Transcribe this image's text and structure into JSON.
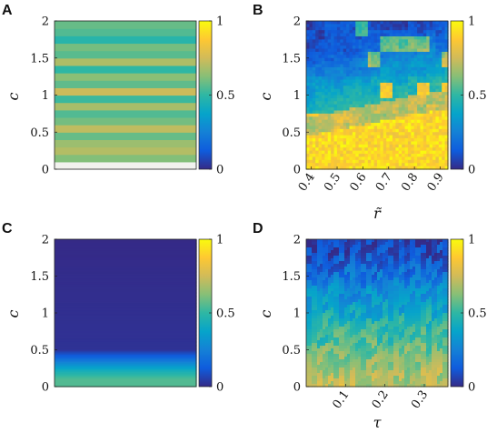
{
  "colors": {
    "colormap_parula": [
      "#352a87",
      "#0f5cdd",
      "#1481d6",
      "#06a4ca",
      "#2eb7a4",
      "#87bf77",
      "#d1bb59",
      "#fec832",
      "#f9fb0e"
    ]
  },
  "chart_data": [
    {
      "panel": "A",
      "type": "heatmap",
      "ylabel": "c",
      "xlabel": "",
      "yticks": [
        "0",
        "0.5",
        "1",
        "1.5",
        "2"
      ],
      "xticks": [],
      "ylim": [
        0,
        2
      ],
      "colorbar": {
        "ticks": [
          "0",
          "0.5",
          "1"
        ],
        "range": [
          0,
          1
        ]
      },
      "profile_description": "horizontal bands, value varies with c only",
      "row_values_bottom_to_top": [
        0.0,
        0.62,
        0.7,
        0.66,
        0.58,
        0.72,
        0.6,
        0.55,
        0.68,
        0.52,
        0.74,
        0.57,
        0.63,
        0.5,
        0.69,
        0.56,
        0.6,
        0.48,
        0.55,
        0.58
      ]
    },
    {
      "panel": "B",
      "type": "heatmap",
      "ylabel": "c",
      "xlabel": "r̃",
      "yticks": [
        "0",
        "0.5",
        "1",
        "1.5",
        "2"
      ],
      "xticks": [
        "0.4",
        "0.5",
        "0.6",
        "0.7",
        "0.8",
        "0.9"
      ],
      "xlim": [
        0.38,
        0.93
      ],
      "ylim": [
        0,
        2
      ],
      "colorbar": {
        "ticks": [
          "0",
          "0.5",
          "1"
        ],
        "range": [
          0,
          1
        ]
      },
      "boundary_c_at_x": [
        [
          0.38,
          0.6
        ],
        [
          0.5,
          0.68
        ],
        [
          0.6,
          0.75
        ],
        [
          0.7,
          0.82
        ],
        [
          0.8,
          0.9
        ],
        [
          0.93,
          0.95
        ]
      ]
    },
    {
      "panel": "C",
      "type": "heatmap",
      "ylabel": "c",
      "xlabel": "",
      "yticks": [
        "0",
        "0.5",
        "1",
        "1.5",
        "2"
      ],
      "xticks": [],
      "ylim": [
        0,
        2
      ],
      "colorbar": {
        "ticks": [
          "0",
          "0.5",
          "1"
        ],
        "range": [
          0,
          1
        ]
      },
      "profile_c_value": [
        [
          0.0,
          0.55
        ],
        [
          0.1,
          0.55
        ],
        [
          0.2,
          0.45
        ],
        [
          0.3,
          0.3
        ],
        [
          0.4,
          0.15
        ],
        [
          0.5,
          0.02
        ],
        [
          2.0,
          0.0
        ]
      ]
    },
    {
      "panel": "D",
      "type": "heatmap",
      "ylabel": "c",
      "xlabel": "τ",
      "yticks": [
        "0",
        "0.5",
        "1",
        "1.5",
        "2"
      ],
      "xticks": [
        "0.1",
        "0.2",
        "0.3"
      ],
      "xlim": [
        0.0,
        0.36
      ],
      "ylim": [
        0,
        2
      ],
      "colorbar": {
        "ticks": [
          "0",
          "0.5",
          "1"
        ],
        "range": [
          0,
          1
        ]
      },
      "profile_c_value": [
        [
          0.0,
          0.72
        ],
        [
          0.3,
          0.65
        ],
        [
          0.6,
          0.55
        ],
        [
          0.9,
          0.45
        ],
        [
          1.2,
          0.33
        ],
        [
          1.5,
          0.2
        ],
        [
          1.8,
          0.1
        ],
        [
          2.0,
          0.05
        ]
      ]
    }
  ]
}
